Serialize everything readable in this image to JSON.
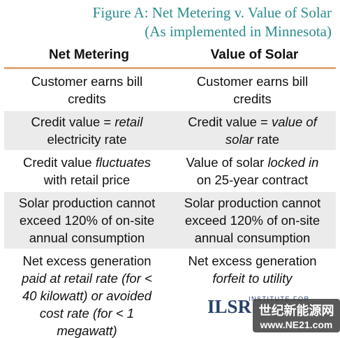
{
  "header": {
    "title": "Figure A: Net Metering v. Value of Solar",
    "subtitle": "(As implemented in Minnesota)"
  },
  "table": {
    "columns": [
      "Net Metering",
      "Value of Solar"
    ],
    "rows": [
      [
        [
          [
            {
              "text": "Customer earns bill"
            }
          ],
          [
            {
              "text": "credits"
            }
          ]
        ],
        [
          [
            {
              "text": "Customer earns bill"
            }
          ],
          [
            {
              "text": "credits"
            }
          ]
        ]
      ],
      [
        [
          [
            {
              "text": "Credit value = "
            },
            {
              "text": "retail",
              "italic": true
            }
          ],
          [
            {
              "text": "electricity rate"
            }
          ]
        ],
        [
          [
            {
              "text": "Credit value = "
            },
            {
              "text": "value of",
              "italic": true
            }
          ],
          [
            {
              "text": "solar",
              "italic": true
            },
            {
              "text": " rate"
            }
          ]
        ]
      ],
      [
        [
          [
            {
              "text": "Credit value "
            },
            {
              "text": "fluctuates",
              "italic": true
            }
          ],
          [
            {
              "text": "with retail price"
            }
          ]
        ],
        [
          [
            {
              "text": "Value of solar "
            },
            {
              "text": "locked in",
              "italic": true
            }
          ],
          [
            {
              "text": "on 25-year contract"
            }
          ]
        ]
      ],
      [
        [
          [
            {
              "text": "Solar production cannot"
            }
          ],
          [
            {
              "text": "exceed 120% of on-site"
            }
          ],
          [
            {
              "text": "annual consumption"
            }
          ]
        ],
        [
          [
            {
              "text": "Solar production cannot"
            }
          ],
          [
            {
              "text": "exceed 120% of on-site"
            }
          ],
          [
            {
              "text": "annual consumption"
            }
          ]
        ]
      ],
      [
        [
          [
            {
              "text": "Net excess generation"
            }
          ],
          [
            {
              "text": "paid at retail rate (for <",
              "italic": true
            }
          ],
          [
            {
              "text": "40 kilowatt) or avoided",
              "italic": true
            }
          ],
          [
            {
              "text": "cost rate (for < 1",
              "italic": true
            }
          ],
          [
            {
              "text": "megawatt)",
              "italic": true
            }
          ]
        ],
        [
          [
            {
              "text": "Net excess generation"
            }
          ],
          [
            {
              "text": "forfeit to utility",
              "italic": true
            }
          ]
        ]
      ]
    ]
  },
  "logo": {
    "name": "ILSR",
    "tagline": "INSTITUTE FOR"
  },
  "watermark": {
    "name": "世纪新能源网",
    "url": "www.NE21.com"
  }
}
